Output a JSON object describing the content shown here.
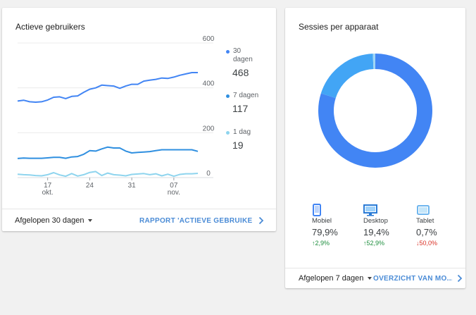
{
  "colors": {
    "series_30d": "#4285f4",
    "series_7d": "#2f8fe0",
    "series_1d": "#8ed4ee",
    "mobile": "#4285f4",
    "desktop": "#42a5f5",
    "tablet": "#9fd6f5",
    "up": "#1e8e3e",
    "down": "#d93025",
    "link": "#4a8bd6"
  },
  "active_users": {
    "title": "Actieve gebruikers",
    "legend": [
      {
        "name": "30 dagen",
        "value": "468"
      },
      {
        "name": "7 dagen",
        "value": "117"
      },
      {
        "name": "1 dag",
        "value": "19"
      }
    ],
    "footer": {
      "range_label": "Afgelopen 30 dagen",
      "link_label": "RAPPORT 'ACTIEVE GEBRUIKERS'"
    }
  },
  "sessions": {
    "title": "Sessies per apparaat",
    "devices": [
      {
        "label": "Mobiel",
        "percent": "79,9%",
        "change": "2,9%",
        "direction": "up",
        "icon": "phone-icon"
      },
      {
        "label": "Desktop",
        "percent": "19,4%",
        "change": "52,9%",
        "direction": "up",
        "icon": "desktop-icon"
      },
      {
        "label": "Tablet",
        "percent": "0,7%",
        "change": "50,0%",
        "direction": "down",
        "icon": "tablet-icon"
      }
    ],
    "footer": {
      "range_label": "Afgelopen 7 dagen",
      "link_label": "OVERZICHT VAN MO..."
    }
  },
  "chart_data": [
    {
      "type": "line",
      "title": "Actieve gebruikers",
      "x": [
        "okt 12",
        "okt 13",
        "okt 14",
        "okt 15",
        "okt 16",
        "okt 17",
        "okt 18",
        "okt 19",
        "okt 20",
        "okt 21",
        "okt 22",
        "okt 23",
        "okt 24",
        "okt 25",
        "okt 26",
        "okt 27",
        "okt 28",
        "okt 29",
        "okt 30",
        "okt 31",
        "nov 1",
        "nov 2",
        "nov 3",
        "nov 4",
        "nov 5",
        "nov 6",
        "nov 7",
        "nov 8",
        "nov 9",
        "nov 10",
        "nov 11"
      ],
      "x_ticks": [
        {
          "top": "17",
          "bottom": "okt."
        },
        {
          "top": "24",
          "bottom": ""
        },
        {
          "top": "31",
          "bottom": ""
        },
        {
          "top": "07",
          "bottom": "nov."
        }
      ],
      "y_ticks": [
        0,
        200,
        400,
        600
      ],
      "ylim": [
        0,
        600
      ],
      "axis_side": "right",
      "grid": true,
      "legend_position": "right",
      "series": [
        {
          "name": "30 dagen",
          "values": [
            341,
            345,
            338,
            336,
            338,
            346,
            358,
            360,
            352,
            362,
            364,
            380,
            394,
            400,
            412,
            410,
            408,
            398,
            408,
            416,
            416,
            430,
            434,
            438,
            444,
            442,
            448,
            456,
            462,
            468,
            468
          ]
        },
        {
          "name": "7 dagen",
          "values": [
            85,
            87,
            86,
            86,
            86,
            88,
            90,
            90,
            86,
            92,
            94,
            104,
            120,
            118,
            128,
            136,
            132,
            132,
            118,
            110,
            112,
            114,
            116,
            120,
            124,
            124,
            124,
            124,
            124,
            124,
            117
          ]
        },
        {
          "name": "1 dag",
          "values": [
            15,
            13,
            12,
            9,
            8,
            13,
            22,
            12,
            6,
            18,
            7,
            13,
            23,
            27,
            9,
            20,
            13,
            11,
            8,
            14,
            16,
            18,
            13,
            17,
            8,
            15,
            6,
            14,
            17,
            17,
            19
          ]
        }
      ]
    },
    {
      "type": "pie",
      "title": "Sessies per apparaat",
      "donut": true,
      "categories": [
        "Mobiel",
        "Desktop",
        "Tablet"
      ],
      "values": [
        79.9,
        19.4,
        0.7
      ]
    }
  ]
}
